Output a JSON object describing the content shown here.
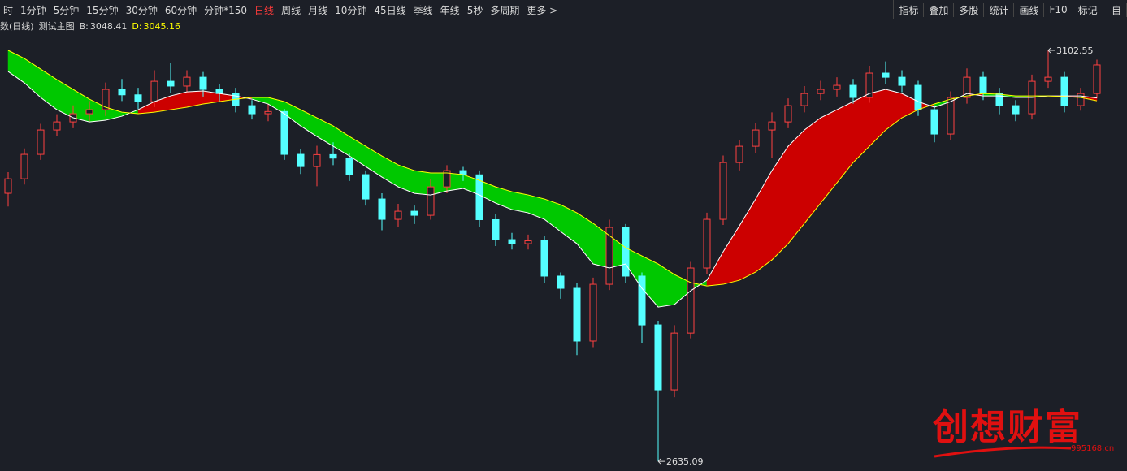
{
  "toolbar": {
    "periods": [
      "时",
      "1分钟",
      "5分钟",
      "15分钟",
      "30分钟",
      "60分钟",
      "分钟*150",
      "日线",
      "周线",
      "月线",
      "10分钟",
      "45日线",
      "季线",
      "年线",
      "5秒",
      "多周期",
      "更多 >"
    ],
    "active": 7,
    "tools": [
      "指标",
      "叠加",
      "多股",
      "统计",
      "画线",
      "F10",
      "标记",
      "-自"
    ]
  },
  "indicator": {
    "period": "数(日线)",
    "name": "测试主图"
  },
  "watermark": {
    "title": "创想财富",
    "site": "995168.cn"
  },
  "chart_data": {
    "type": "candlestick",
    "ylim": [
      2628.7,
      3118.3
    ],
    "up_color": "#ff4040",
    "down_color": "#54ffff",
    "open": [
      2940,
      2956.5,
      2984.3,
      3012,
      3021.2,
      3030.5,
      3035.1,
      3058.2,
      3052,
      3044.3,
      3067.4,
      3062,
      3072,
      3058.2,
      3053.5,
      3039.7,
      3030.5,
      3033,
      2984.3,
      2970.4,
      2984,
      2980,
      2961.2,
      2933.5,
      2910.4,
      2919.6,
      2915,
      2947.3,
      2965.8,
      2961,
      2910,
      2887.3,
      2882.7,
      2886,
      2845.8,
      2831.9,
      2771.9,
      2836.5,
      2901.2,
      2845.8,
      2790.3,
      2716.4,
      2781,
      2855,
      2910.4,
      2975,
      2993.5,
      3012,
      3021.2,
      3039.7,
      3053.5,
      3058.2,
      3062.8,
      3049,
      3076.7,
      3072,
      3062.8,
      3035.1,
      3007.4,
      3049,
      3072,
      3053.5,
      3039.7,
      3030.5,
      3067.4,
      3072,
      3039.7,
      3053.5
    ],
    "high": [
      2964,
      2991,
      3019,
      3030,
      3040,
      3045,
      3066,
      3070,
      3060,
      3080,
      3088,
      3080,
      3078,
      3064,
      3060,
      3046,
      3042,
      3036,
      2990,
      2994,
      2998,
      2986,
      2966,
      2940,
      2928,
      2926,
      2956,
      2972,
      2970,
      2966,
      2916,
      2895,
      2893,
      2892,
      2850,
      2838,
      2844,
      2910,
      2905,
      2850,
      2795,
      2790,
      2862,
      2918,
      2983,
      3000,
      3020,
      3032,
      3048,
      3062,
      3068,
      3072,
      3070,
      3085,
      3090,
      3080,
      3068,
      3040,
      3056,
      3082,
      3078,
      3060,
      3046,
      3075,
      3102.55,
      3078,
      3060,
      3092
    ],
    "low": [
      2925,
      2950,
      2978,
      3005,
      3014,
      3022,
      3028,
      3045,
      3036,
      3038,
      3054,
      3055,
      3050,
      3045,
      3032,
      3024,
      3022,
      2978,
      2962,
      2948,
      2972,
      2954,
      2926,
      2898,
      2902,
      2905,
      2910,
      2940,
      2954,
      2902,
      2880,
      2876,
      2876,
      2838,
      2820,
      2756,
      2765,
      2830,
      2838,
      2770,
      2635.09,
      2708,
      2775,
      2848,
      2904,
      2966,
      2986,
      2980,
      3014,
      3032,
      3046,
      3050,
      3042,
      3043,
      3064,
      3055,
      3028,
      2998,
      3000,
      3042,
      3046,
      3030,
      3022,
      3024,
      3060,
      3032,
      3034,
      3048
    ],
    "close": [
      2956.5,
      2984.3,
      3012,
      3021.2,
      3030.5,
      3035.1,
      3058.2,
      3052,
      3044.3,
      3067.4,
      3062,
      3072,
      3058.2,
      3053.5,
      3039.7,
      3030.5,
      3033,
      2984.3,
      2970.4,
      2984,
      2980,
      2961.2,
      2933.5,
      2910.4,
      2919.6,
      2915,
      2947.3,
      2965.8,
      2961,
      2910,
      2887.3,
      2882.7,
      2886,
      2845.8,
      2831.9,
      2771.9,
      2836.5,
      2901.2,
      2845.8,
      2790.3,
      2716.4,
      2781,
      2855,
      2910.4,
      2975,
      2993.5,
      3012,
      3021.2,
      3039.7,
      3053.5,
      3058.2,
      3062.8,
      3049,
      3076.7,
      3072,
      3062.8,
      3035.1,
      3007.4,
      3049,
      3072,
      3053.5,
      3039.7,
      3030.5,
      3067.4,
      3072,
      3039.7,
      3053.5,
      3086
    ],
    "band_colors": {
      "above": "#cc0000",
      "below": "#00c800"
    },
    "series": [
      {
        "name": "B:",
        "color": "#ffffff",
        "values": [
          3078.5,
          3065.6,
          3049,
          3035.1,
          3025.9,
          3021.2,
          3023.1,
          3027.7,
          3035.1,
          3044.3,
          3050.8,
          3055.4,
          3056.4,
          3053.5,
          3050.8,
          3047.1,
          3041.6,
          3030.5,
          3016.6,
          3004.6,
          2993.5,
          2982.5,
          2970.4,
          2958.4,
          2947.3,
          2939.9,
          2938.1,
          2942.7,
          2945.5,
          2938.1,
          2928.9,
          2921.5,
          2917.8,
          2910.4,
          2896.5,
          2882.7,
          2859.6,
          2855,
          2859.6,
          2831.9,
          2810.6,
          2813.4,
          2829.1,
          2841.1,
          2873.5,
          2903,
          2933.5,
          2965.8,
          2993.5,
          3012,
          3025.9,
          3035.1,
          3044.3,
          3053.5,
          3058.2,
          3053.5,
          3044.3,
          3037.9,
          3044.3,
          3053.5,
          3050.8,
          3050.8,
          3049,
          3049,
          3050.8,
          3050.8,
          3050.8,
          3048.41
        ]
      },
      {
        "name": "D:",
        "color": "#ffff00",
        "values": [
          3102.6,
          3093.3,
          3081.3,
          3069.3,
          3058.2,
          3047.1,
          3037.9,
          3032.3,
          3030.5,
          3032.3,
          3035.1,
          3037.9,
          3041.6,
          3044.3,
          3047.1,
          3049,
          3049,
          3044.3,
          3035.1,
          3025.9,
          3016.6,
          3004.6,
          2993.5,
          2982.5,
          2972.3,
          2965.8,
          2963.1,
          2963.1,
          2961.2,
          2954.7,
          2947.3,
          2941.8,
          2938.1,
          2933.5,
          2927,
          2917.8,
          2905.8,
          2891.9,
          2878.1,
          2868.8,
          2859.6,
          2847.6,
          2838.4,
          2834.6,
          2836.5,
          2841.1,
          2850.4,
          2864.2,
          2882.7,
          2905.8,
          2928.9,
          2951.9,
          2975,
          2993.5,
          3012,
          3025.9,
          3035.1,
          3041.6,
          3047.1,
          3050.8,
          3053.5,
          3052.7,
          3050.8,
          3050.8,
          3050.8,
          3049.9,
          3049,
          3045.16
        ]
      }
    ],
    "high_label_index": 64,
    "low_label_index": 40
  }
}
